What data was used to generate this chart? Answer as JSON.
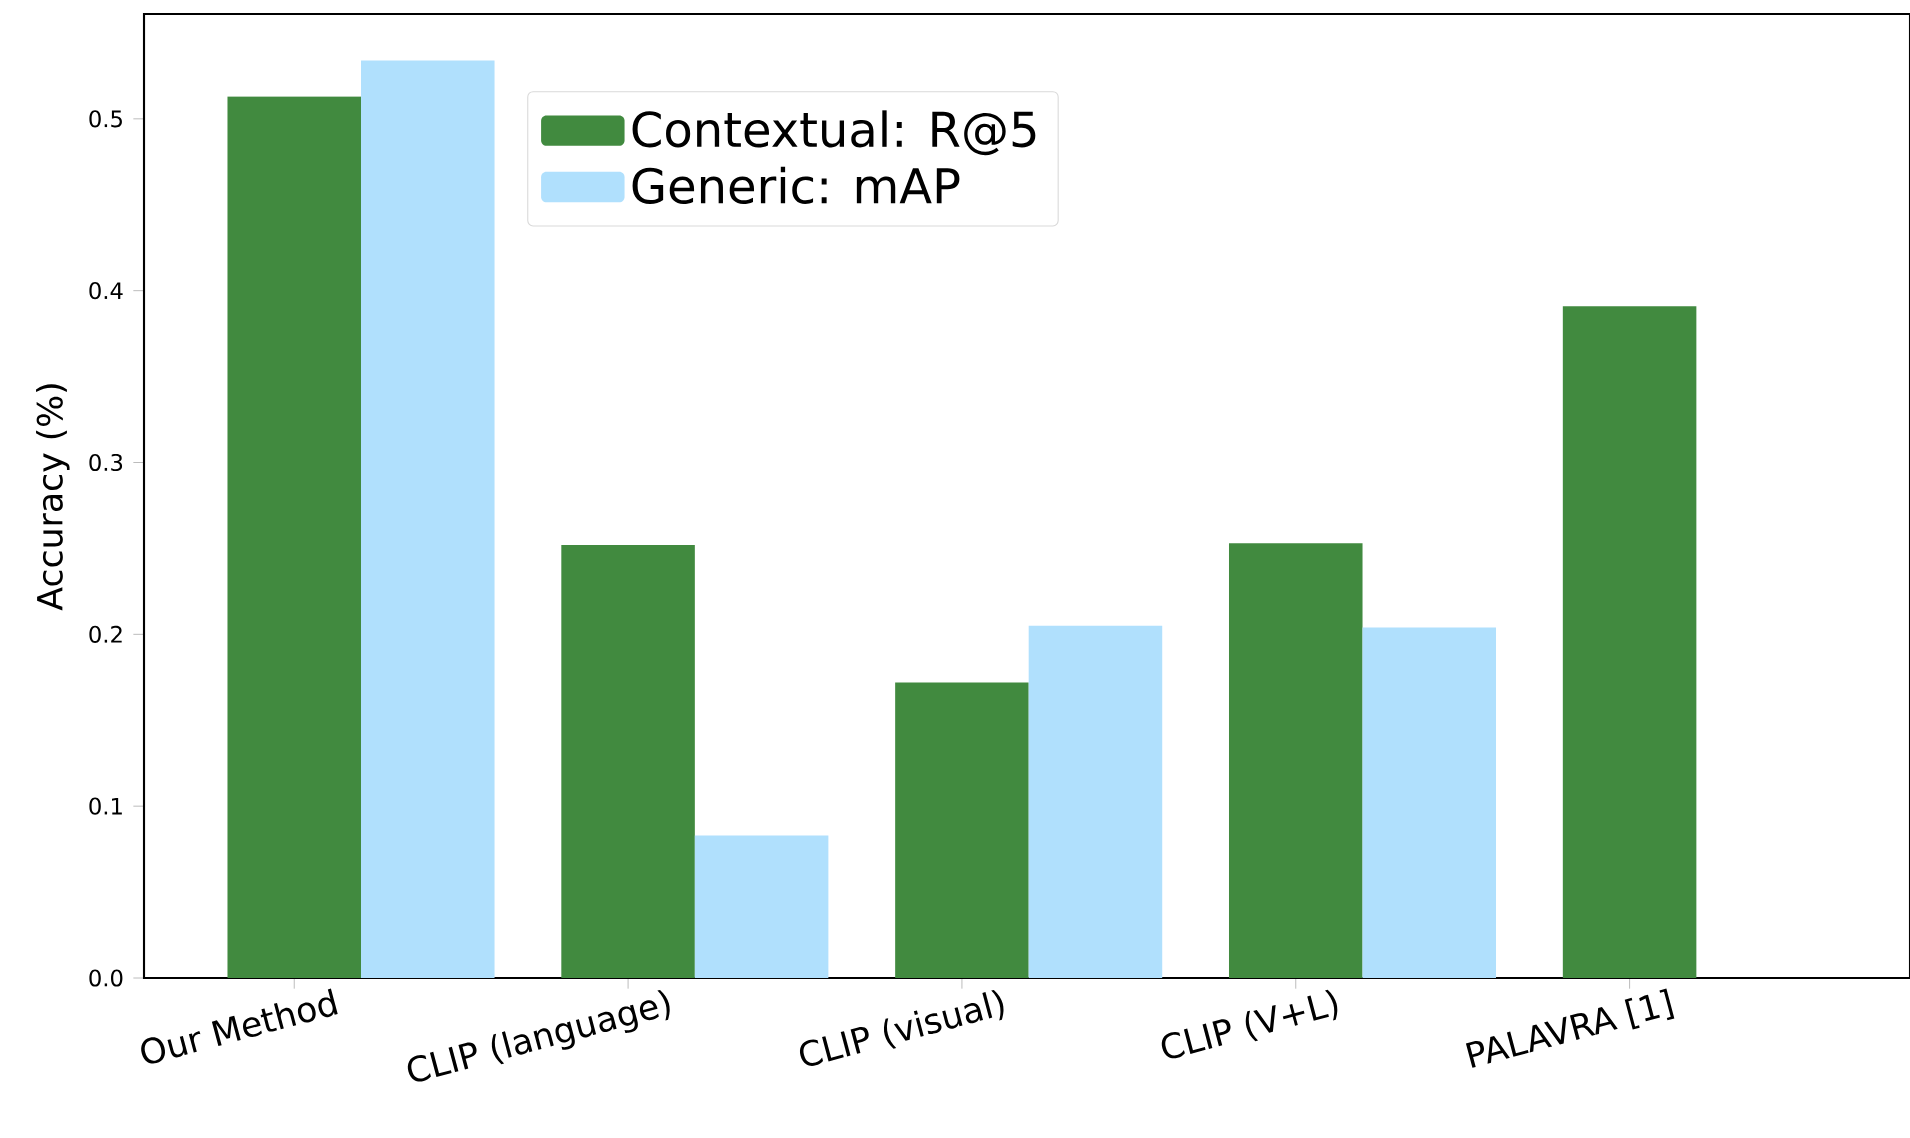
{
  "chart_data": {
    "type": "bar",
    "ylabel": "Accuracy (%)",
    "categories": [
      "Our Method",
      "CLIP (language)",
      "CLIP (visual)",
      "CLIP (V+L)",
      "PALAVRA [1]"
    ],
    "series": [
      {
        "name": "Contextual: R@5",
        "color": "#418a3f",
        "values": [
          0.513,
          0.252,
          0.172,
          0.253,
          0.391
        ]
      },
      {
        "name": "Generic: mAP",
        "color": "#b0e0fd",
        "values": [
          0.534,
          0.083,
          0.205,
          0.204,
          null
        ]
      }
    ],
    "ylim": [
      0,
      0.561
    ],
    "yticks": [
      {
        "value": 0,
        "label": "0.0"
      },
      0.1,
      0.2,
      0.3,
      0.4,
      0.5
    ],
    "legend": "top"
  }
}
